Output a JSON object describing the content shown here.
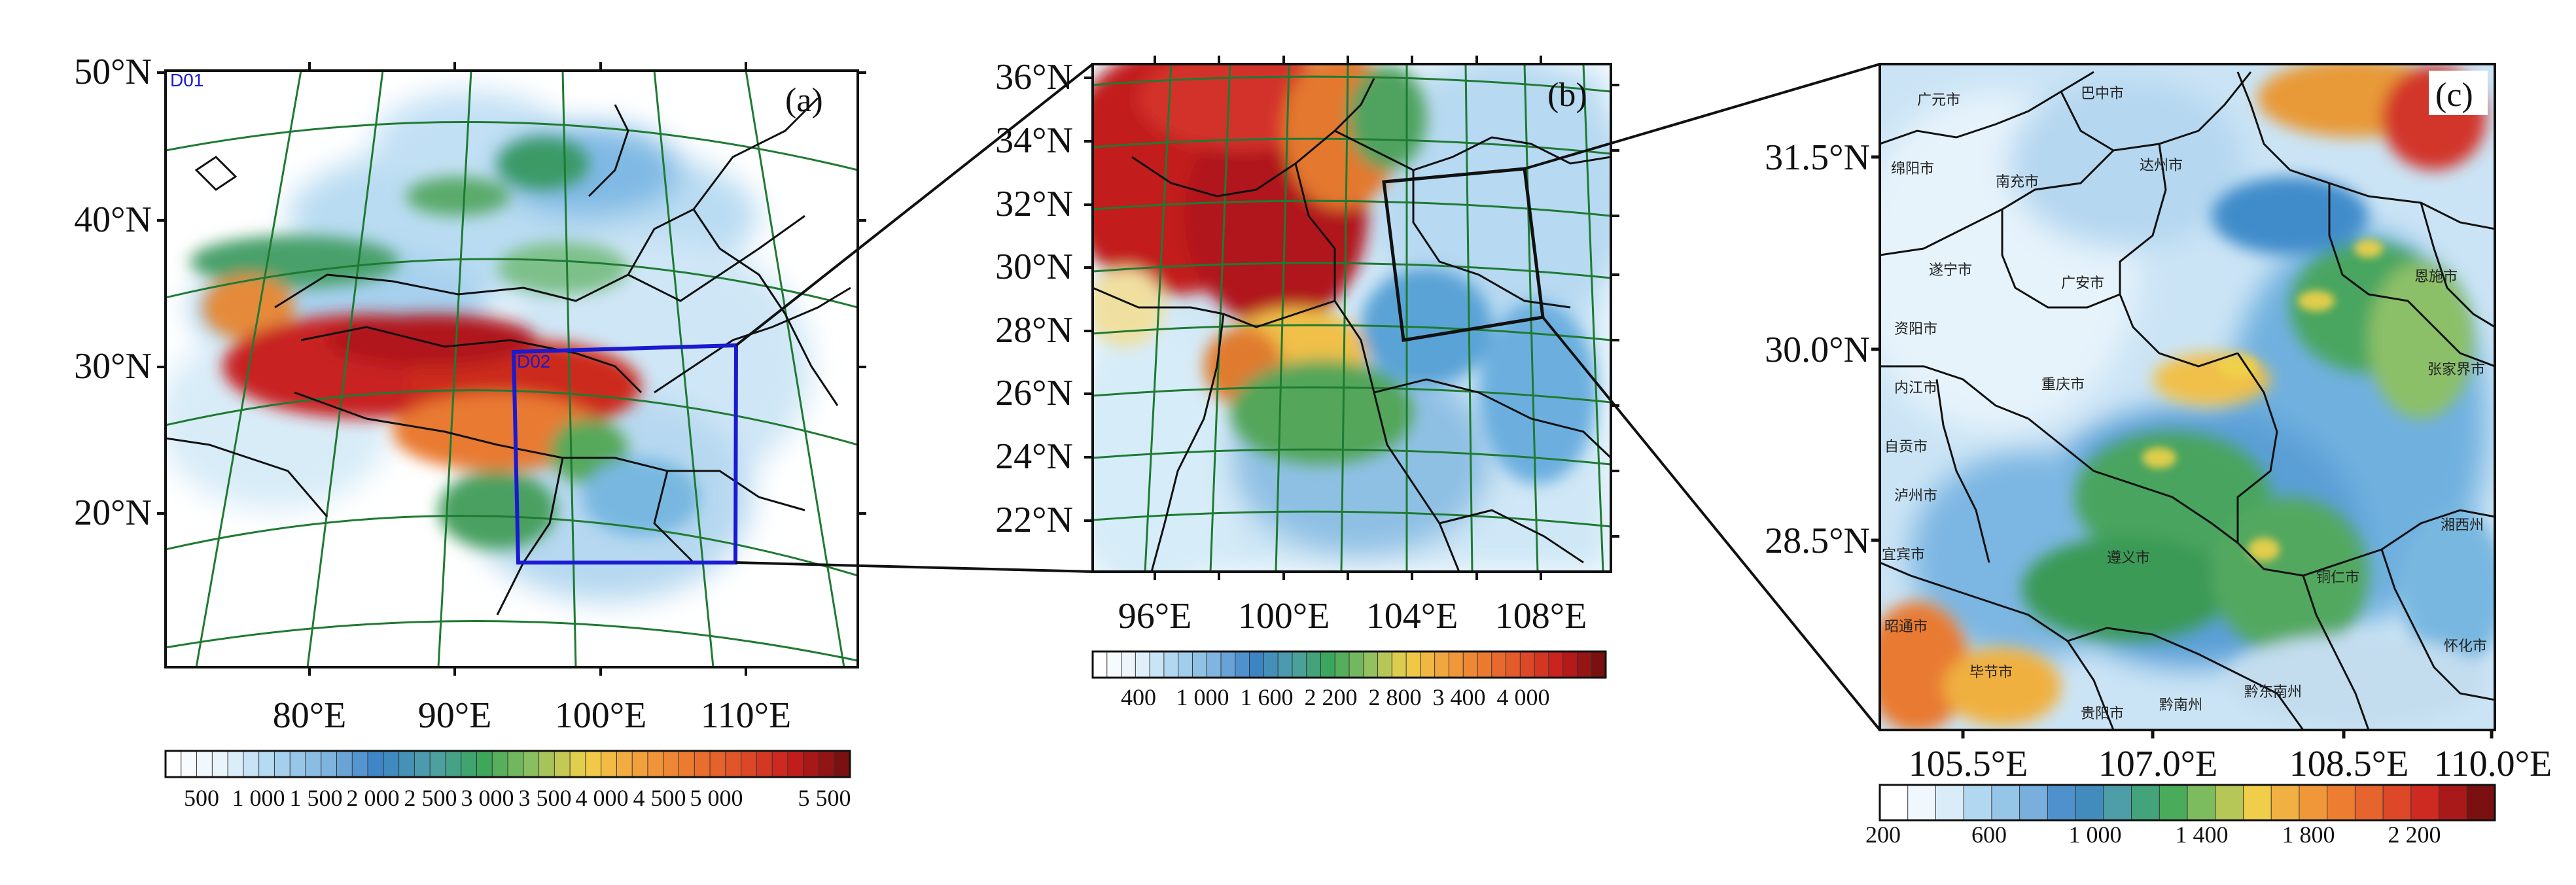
{
  "figure": {
    "panels": [
      {
        "id": "a",
        "label": "(a)",
        "domain_labels": [
          "D01",
          "D02"
        ],
        "lat_ticks": [
          "50°N",
          "40°N",
          "30°N",
          "20°N"
        ],
        "lon_ticks": [
          "80°E",
          "90°E",
          "100°E",
          "110°E"
        ],
        "colorbar_ticks": [
          "500",
          "1 000",
          "1 500",
          "2 000",
          "2 500",
          "3 000",
          "3 500",
          "4 000",
          "4 500",
          "5 000",
          "5 500"
        ]
      },
      {
        "id": "b",
        "label": "(b)",
        "lat_ticks": [
          "36°N",
          "34°N",
          "32°N",
          "30°N",
          "28°N",
          "26°N",
          "24°N",
          "22°N"
        ],
        "lon_ticks": [
          "96°E",
          "100°E",
          "104°E",
          "108°E"
        ],
        "colorbar_ticks": [
          "400",
          "1 000",
          "1 600",
          "2 200",
          "2 800",
          "3 400",
          "4 000"
        ]
      },
      {
        "id": "c",
        "label": "(c)",
        "lat_ticks": [
          "31.5°N",
          "30.0°N",
          "28.5°N"
        ],
        "lon_ticks": [
          "105.5°E",
          "107.0°E",
          "108.5°E",
          "110.0°E"
        ],
        "colorbar_ticks": [
          "200",
          "600",
          "1 000",
          "1 400",
          "1 800",
          "2 200"
        ],
        "city_labels": [
          "广元市",
          "巴中市",
          "绵阳市",
          "南充市",
          "达州市",
          "遂宁市",
          "广安市",
          "恩施市",
          "资阳市",
          "张家界市",
          "内江市",
          "重庆市",
          "自贡市",
          "泸州市",
          "湘西州",
          "宜宾市",
          "遵义市",
          "铜仁市",
          "昭通市",
          "毕节市",
          "怀化市",
          "贵阳市",
          "黔南州",
          "黔东南州"
        ]
      }
    ],
    "colors": {
      "low": "#ffffff",
      "lightblue": "#a9d4ef",
      "blue": "#3a83c6",
      "green": "#3aa65a",
      "yellow": "#f0d04a",
      "orange": "#ec7a30",
      "red": "#c81e1e",
      "darkred": "#7a1010",
      "grid": "#1f7a32",
      "domain_box": "#1a1ad0"
    }
  }
}
